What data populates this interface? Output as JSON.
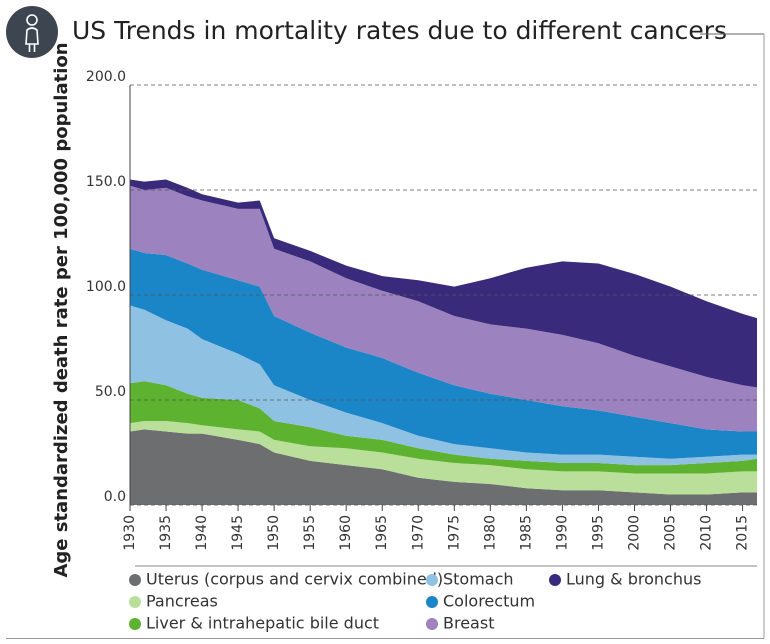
{
  "chart_data": {
    "type": "stacked_area",
    "title": "US Trends in mortality rates due to different cancers",
    "y_label": "Age standardized death rate per 100,000 population",
    "x": [
      1930,
      1932,
      1935,
      1938,
      1940,
      1945,
      1948,
      1950,
      1955,
      1960,
      1965,
      1970,
      1975,
      1980,
      1985,
      1990,
      1995,
      2000,
      2005,
      2010,
      2015,
      2017
    ],
    "xlim": [
      1930,
      2017
    ],
    "xticks": [
      1930,
      1935,
      1940,
      1945,
      1950,
      1955,
      1960,
      1965,
      1970,
      1975,
      1980,
      1985,
      1990,
      1995,
      2000,
      2005,
      2010,
      2015
    ],
    "ylim": [
      0,
      200
    ],
    "yticks": [
      {
        "value": 0,
        "label": "0.0"
      },
      {
        "value": 50,
        "label": "50.0"
      },
      {
        "value": 100,
        "label": "100.0"
      },
      {
        "value": 150,
        "label": "150.0"
      },
      {
        "value": 200,
        "label": "200.0"
      }
    ],
    "grid": true,
    "series": [
      {
        "name": "Uterus (corpus and cervix combined)",
        "color": "#6d6e70",
        "values": [
          35,
          36,
          35,
          34,
          34,
          31,
          29,
          25,
          21,
          19,
          17,
          13,
          11,
          10,
          8,
          7,
          7,
          6,
          5,
          5,
          6,
          6
        ]
      },
      {
        "name": "Pancreas",
        "color": "#b9df9a",
        "values": [
          4,
          4,
          5,
          5,
          4,
          5,
          6,
          6,
          7,
          8,
          8,
          9,
          9,
          9,
          9,
          9,
          9,
          9,
          10,
          10,
          10,
          10
        ]
      },
      {
        "name": "Liver & intrahepatic bile duct",
        "color": "#5db22f",
        "values": [
          19,
          19,
          17,
          14,
          13,
          14,
          11,
          9,
          9,
          6,
          6,
          5,
          4,
          3,
          4,
          4,
          4,
          4,
          4,
          5,
          5,
          6
        ]
      },
      {
        "name": "Stomach",
        "color": "#8fc1e3",
        "values": [
          37,
          34,
          31,
          31,
          28,
          22,
          21,
          17,
          13,
          11,
          8,
          6,
          5,
          5,
          4,
          4,
          4,
          4,
          3,
          3,
          3,
          2
        ]
      },
      {
        "name": "Colorectum",
        "color": "#1a86c7",
        "values": [
          27,
          27,
          31,
          31,
          33,
          35,
          37,
          33,
          32,
          31,
          31,
          30,
          28,
          26,
          25,
          23,
          21,
          19,
          17,
          13,
          11,
          11
        ]
      },
      {
        "name": "Breast",
        "color": "#9c82bf",
        "values": [
          30,
          30,
          32,
          32,
          33,
          34,
          37,
          32,
          34,
          33,
          32,
          34,
          33,
          33,
          34,
          34,
          32,
          29,
          27,
          25,
          22,
          21
        ]
      },
      {
        "name": "Lung & bronchus",
        "color": "#3a2a7b",
        "values": [
          3,
          4,
          4,
          4,
          3,
          3,
          4,
          5,
          5,
          6,
          7,
          10,
          14,
          22,
          29,
          35,
          38,
          39,
          38,
          36,
          34,
          33
        ]
      }
    ]
  }
}
